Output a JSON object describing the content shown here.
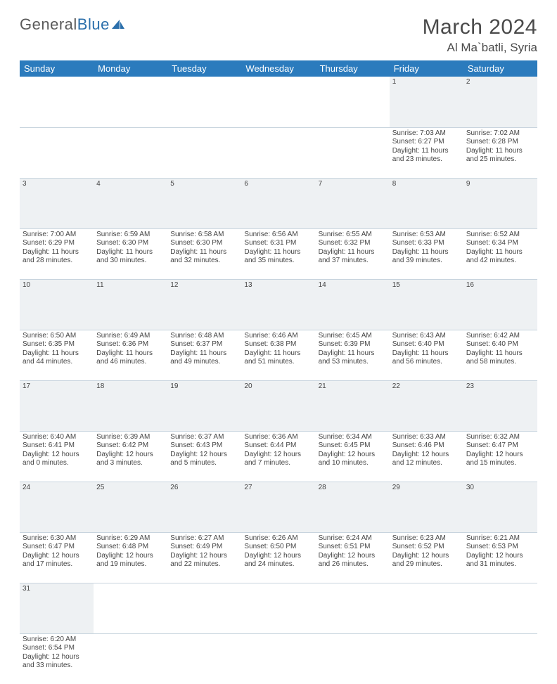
{
  "logo": {
    "text1": "General",
    "text2": "Blue"
  },
  "title": "March 2024",
  "location": "Al Ma`batli, Syria",
  "colors": {
    "header_bg": "#2b7bbd",
    "header_fg": "#ffffff",
    "daynum_bg": "#eef1f3",
    "rule": "#c8d4de",
    "text": "#444444",
    "title": "#4a4a4a",
    "logo_blue": "#2b6fab"
  },
  "weekdays": [
    "Sunday",
    "Monday",
    "Tuesday",
    "Wednesday",
    "Thursday",
    "Friday",
    "Saturday"
  ],
  "weeks": [
    {
      "nums": [
        "",
        "",
        "",
        "",
        "",
        "1",
        "2"
      ],
      "cells": [
        null,
        null,
        null,
        null,
        null,
        {
          "sr": "Sunrise: 7:03 AM",
          "ss": "Sunset: 6:27 PM",
          "d1": "Daylight: 11 hours",
          "d2": "and 23 minutes."
        },
        {
          "sr": "Sunrise: 7:02 AM",
          "ss": "Sunset: 6:28 PM",
          "d1": "Daylight: 11 hours",
          "d2": "and 25 minutes."
        }
      ]
    },
    {
      "nums": [
        "3",
        "4",
        "5",
        "6",
        "7",
        "8",
        "9"
      ],
      "cells": [
        {
          "sr": "Sunrise: 7:00 AM",
          "ss": "Sunset: 6:29 PM",
          "d1": "Daylight: 11 hours",
          "d2": "and 28 minutes."
        },
        {
          "sr": "Sunrise: 6:59 AM",
          "ss": "Sunset: 6:30 PM",
          "d1": "Daylight: 11 hours",
          "d2": "and 30 minutes."
        },
        {
          "sr": "Sunrise: 6:58 AM",
          "ss": "Sunset: 6:30 PM",
          "d1": "Daylight: 11 hours",
          "d2": "and 32 minutes."
        },
        {
          "sr": "Sunrise: 6:56 AM",
          "ss": "Sunset: 6:31 PM",
          "d1": "Daylight: 11 hours",
          "d2": "and 35 minutes."
        },
        {
          "sr": "Sunrise: 6:55 AM",
          "ss": "Sunset: 6:32 PM",
          "d1": "Daylight: 11 hours",
          "d2": "and 37 minutes."
        },
        {
          "sr": "Sunrise: 6:53 AM",
          "ss": "Sunset: 6:33 PM",
          "d1": "Daylight: 11 hours",
          "d2": "and 39 minutes."
        },
        {
          "sr": "Sunrise: 6:52 AM",
          "ss": "Sunset: 6:34 PM",
          "d1": "Daylight: 11 hours",
          "d2": "and 42 minutes."
        }
      ]
    },
    {
      "nums": [
        "10",
        "11",
        "12",
        "13",
        "14",
        "15",
        "16"
      ],
      "cells": [
        {
          "sr": "Sunrise: 6:50 AM",
          "ss": "Sunset: 6:35 PM",
          "d1": "Daylight: 11 hours",
          "d2": "and 44 minutes."
        },
        {
          "sr": "Sunrise: 6:49 AM",
          "ss": "Sunset: 6:36 PM",
          "d1": "Daylight: 11 hours",
          "d2": "and 46 minutes."
        },
        {
          "sr": "Sunrise: 6:48 AM",
          "ss": "Sunset: 6:37 PM",
          "d1": "Daylight: 11 hours",
          "d2": "and 49 minutes."
        },
        {
          "sr": "Sunrise: 6:46 AM",
          "ss": "Sunset: 6:38 PM",
          "d1": "Daylight: 11 hours",
          "d2": "and 51 minutes."
        },
        {
          "sr": "Sunrise: 6:45 AM",
          "ss": "Sunset: 6:39 PM",
          "d1": "Daylight: 11 hours",
          "d2": "and 53 minutes."
        },
        {
          "sr": "Sunrise: 6:43 AM",
          "ss": "Sunset: 6:40 PM",
          "d1": "Daylight: 11 hours",
          "d2": "and 56 minutes."
        },
        {
          "sr": "Sunrise: 6:42 AM",
          "ss": "Sunset: 6:40 PM",
          "d1": "Daylight: 11 hours",
          "d2": "and 58 minutes."
        }
      ]
    },
    {
      "nums": [
        "17",
        "18",
        "19",
        "20",
        "21",
        "22",
        "23"
      ],
      "cells": [
        {
          "sr": "Sunrise: 6:40 AM",
          "ss": "Sunset: 6:41 PM",
          "d1": "Daylight: 12 hours",
          "d2": "and 0 minutes."
        },
        {
          "sr": "Sunrise: 6:39 AM",
          "ss": "Sunset: 6:42 PM",
          "d1": "Daylight: 12 hours",
          "d2": "and 3 minutes."
        },
        {
          "sr": "Sunrise: 6:37 AM",
          "ss": "Sunset: 6:43 PM",
          "d1": "Daylight: 12 hours",
          "d2": "and 5 minutes."
        },
        {
          "sr": "Sunrise: 6:36 AM",
          "ss": "Sunset: 6:44 PM",
          "d1": "Daylight: 12 hours",
          "d2": "and 7 minutes."
        },
        {
          "sr": "Sunrise: 6:34 AM",
          "ss": "Sunset: 6:45 PM",
          "d1": "Daylight: 12 hours",
          "d2": "and 10 minutes."
        },
        {
          "sr": "Sunrise: 6:33 AM",
          "ss": "Sunset: 6:46 PM",
          "d1": "Daylight: 12 hours",
          "d2": "and 12 minutes."
        },
        {
          "sr": "Sunrise: 6:32 AM",
          "ss": "Sunset: 6:47 PM",
          "d1": "Daylight: 12 hours",
          "d2": "and 15 minutes."
        }
      ]
    },
    {
      "nums": [
        "24",
        "25",
        "26",
        "27",
        "28",
        "29",
        "30"
      ],
      "cells": [
        {
          "sr": "Sunrise: 6:30 AM",
          "ss": "Sunset: 6:47 PM",
          "d1": "Daylight: 12 hours",
          "d2": "and 17 minutes."
        },
        {
          "sr": "Sunrise: 6:29 AM",
          "ss": "Sunset: 6:48 PM",
          "d1": "Daylight: 12 hours",
          "d2": "and 19 minutes."
        },
        {
          "sr": "Sunrise: 6:27 AM",
          "ss": "Sunset: 6:49 PM",
          "d1": "Daylight: 12 hours",
          "d2": "and 22 minutes."
        },
        {
          "sr": "Sunrise: 6:26 AM",
          "ss": "Sunset: 6:50 PM",
          "d1": "Daylight: 12 hours",
          "d2": "and 24 minutes."
        },
        {
          "sr": "Sunrise: 6:24 AM",
          "ss": "Sunset: 6:51 PM",
          "d1": "Daylight: 12 hours",
          "d2": "and 26 minutes."
        },
        {
          "sr": "Sunrise: 6:23 AM",
          "ss": "Sunset: 6:52 PM",
          "d1": "Daylight: 12 hours",
          "d2": "and 29 minutes."
        },
        {
          "sr": "Sunrise: 6:21 AM",
          "ss": "Sunset: 6:53 PM",
          "d1": "Daylight: 12 hours",
          "d2": "and 31 minutes."
        }
      ]
    },
    {
      "nums": [
        "31",
        "",
        "",
        "",
        "",
        "",
        ""
      ],
      "cells": [
        {
          "sr": "Sunrise: 6:20 AM",
          "ss": "Sunset: 6:54 PM",
          "d1": "Daylight: 12 hours",
          "d2": "and 33 minutes."
        },
        null,
        null,
        null,
        null,
        null,
        null
      ]
    }
  ]
}
